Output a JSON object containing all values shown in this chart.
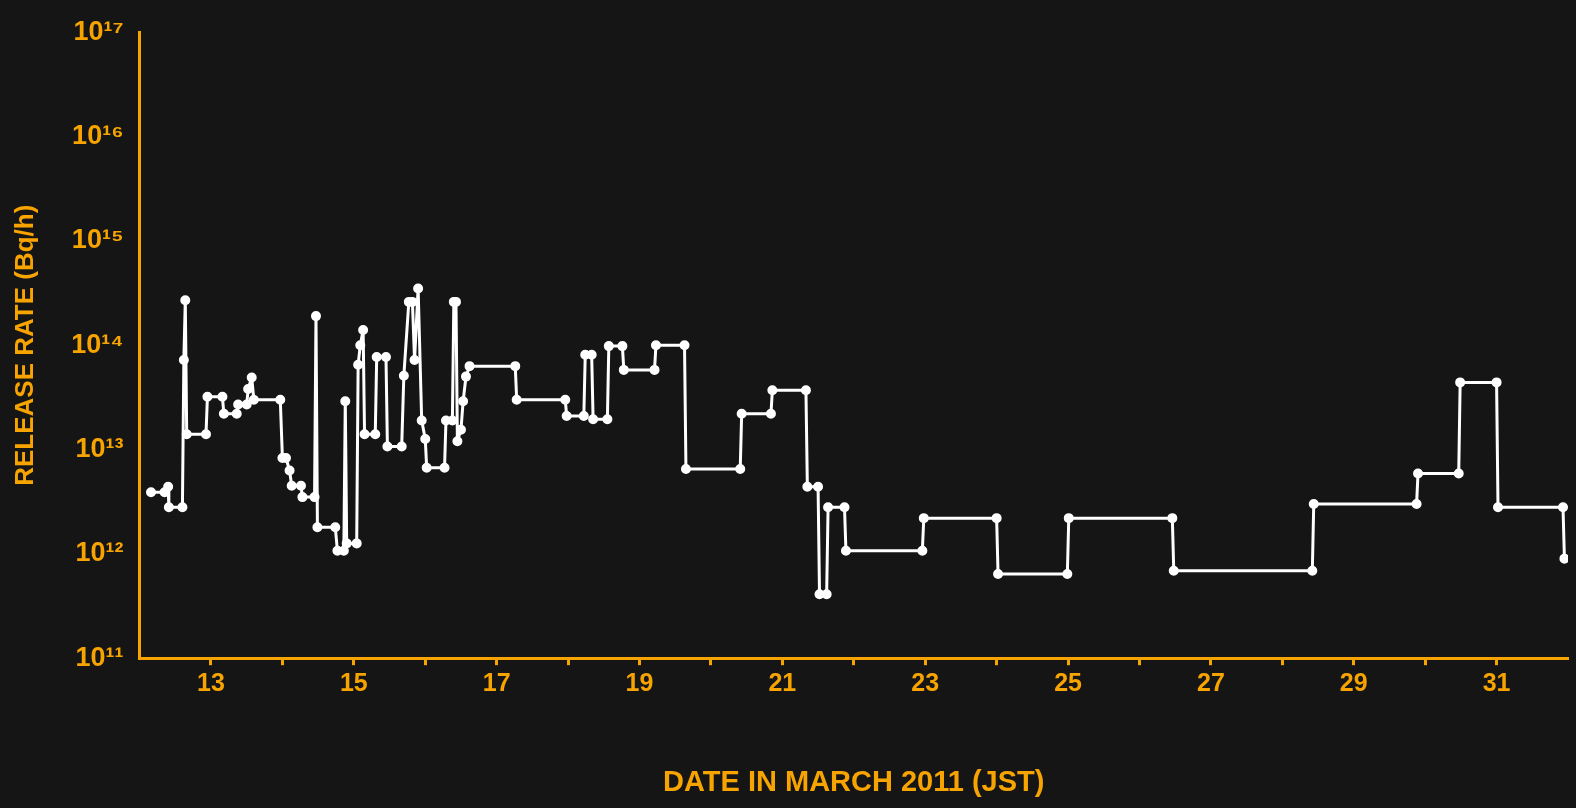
{
  "chart_data": {
    "type": "line",
    "xlabel": "DATE IN MARCH 2011 (JST)",
    "ylabel": "RELEASE RATE (Bq/h)",
    "x": [
      12.16,
      12.35,
      12.4,
      12.41,
      12.6,
      12.62,
      12.64,
      12.66,
      12.93,
      12.95,
      13.16,
      13.18,
      13.36,
      13.38,
      13.5,
      13.52,
      13.57,
      13.6,
      13.97,
      14.0,
      14.05,
      14.1,
      14.13,
      14.26,
      14.28,
      14.45,
      14.47,
      14.49,
      14.74,
      14.77,
      14.86,
      14.88,
      14.9,
      15.04,
      15.06,
      15.09,
      15.13,
      15.15,
      15.3,
      15.32,
      15.45,
      15.47,
      15.67,
      15.7,
      15.77,
      15.82,
      15.85,
      15.9,
      15.95,
      16.0,
      16.02,
      16.27,
      16.29,
      16.38,
      16.4,
      16.43,
      16.45,
      16.5,
      16.53,
      16.57,
      16.62,
      17.26,
      17.28,
      17.96,
      17.98,
      18.22,
      18.24,
      18.33,
      18.35,
      18.55,
      18.57,
      18.76,
      18.78,
      19.21,
      19.23,
      19.63,
      19.65,
      20.41,
      20.43,
      20.84,
      20.86,
      21.33,
      21.35,
      21.5,
      21.52,
      21.62,
      21.64,
      21.87,
      21.89,
      22.96,
      22.98,
      24.0,
      24.02,
      24.99,
      25.01,
      26.46,
      26.48,
      28.42,
      28.44,
      29.88,
      29.9,
      30.47,
      30.49,
      31.0,
      31.02,
      31.93,
      31.95
    ],
    "values": [
      3900000000000.0,
      3900000000000.0,
      4400000000000.0,
      2800000000000.0,
      2800000000000.0,
      72000000000000.0,
      270000000000000.0,
      14000000000000.0,
      14000000000000.0,
      32000000000000.0,
      32000000000000.0,
      22000000000000.0,
      22000000000000.0,
      27000000000000.0,
      27000000000000.0,
      38000000000000.0,
      49000000000000.0,
      30000000000000.0,
      30000000000000.0,
      8300000000000.0,
      8300000000000.0,
      6300000000000.0,
      4500000000000.0,
      4500000000000.0,
      3500000000000.0,
      3500000000000.0,
      190000000000000.0,
      1800000000000.0,
      1800000000000.0,
      1070000000000.0,
      1070000000000.0,
      29000000000000.0,
      1260000000000.0,
      1260000000000.0,
      65000000000000.0,
      100000000000000.0,
      140000000000000.0,
      14000000000000.0,
      14000000000000.0,
      77000000000000.0,
      77000000000000.0,
      10700000000000.0,
      10700000000000.0,
      51000000000000.0,
      260000000000000.0,
      260000000000000.0,
      72000000000000.0,
      350000000000000.0,
      19000000000000.0,
      12600000000000.0,
      6700000000000.0,
      6700000000000.0,
      19000000000000.0,
      19000000000000.0,
      260000000000000.0,
      260000000000000.0,
      12000000000000.0,
      15500000000000.0,
      29000000000000.0,
      50000000000000.0,
      63000000000000.0,
      63000000000000.0,
      30000000000000.0,
      30000000000000.0,
      21000000000000.0,
      21000000000000.0,
      81000000000000.0,
      81000000000000.0,
      19500000000000.0,
      19500000000000.0,
      98000000000000.0,
      98000000000000.0,
      58000000000000.0,
      58000000000000.0,
      100000000000000.0,
      100000000000000.0,
      6500000000000.0,
      6500000000000.0,
      22000000000000.0,
      22000000000000.0,
      37000000000000.0,
      37000000000000.0,
      4400000000000.0,
      4400000000000.0,
      410000000000.0,
      410000000000.0,
      2800000000000.0,
      2800000000000.0,
      1070000000000.0,
      1070000000000.0,
      2200000000000.0,
      2200000000000.0,
      640000000000.0,
      640000000000.0,
      2200000000000.0,
      2200000000000.0,
      690000000000.0,
      690000000000.0,
      3000000000000.0,
      3000000000000.0,
      5900000000000.0,
      5900000000000.0,
      44000000000000.0,
      44000000000000.0,
      2800000000000.0,
      2800000000000.0,
      900000000000.0
    ],
    "color": "#ffffff",
    "marker": "circle",
    "line_style": "solid",
    "log": "y",
    "xlim": [
      12,
      32
    ],
    "xticks": [
      13,
      {
        "value": 14,
        "label": null
      },
      15,
      {
        "value": 16,
        "label": null
      },
      17,
      {
        "value": 18,
        "label": null
      },
      19,
      {
        "value": 20,
        "label": null
      },
      21,
      {
        "value": 22,
        "label": null
      },
      23,
      {
        "value": 24,
        "label": null
      },
      25,
      {
        "value": 26,
        "label": null
      },
      27,
      {
        "value": 28,
        "label": null
      },
      29,
      {
        "value": 30,
        "label": null
      },
      31
    ],
    "ylim": [
      100000000000.0,
      1e+17
    ],
    "yticks": [
      {
        "value": 100000000000.0,
        "label": "10¹¹"
      },
      {
        "value": 1000000000000.0,
        "label": "10¹²"
      },
      {
        "value": 10000000000000.0,
        "label": "10¹³"
      },
      {
        "value": 100000000000000.0,
        "label": "10¹⁴"
      },
      {
        "value": 1000000000000000.0,
        "label": "10¹⁵"
      },
      {
        "value": 1e+16,
        "label": "10¹⁶"
      },
      {
        "value": 1e+17,
        "label": "10¹⁷"
      }
    ]
  }
}
